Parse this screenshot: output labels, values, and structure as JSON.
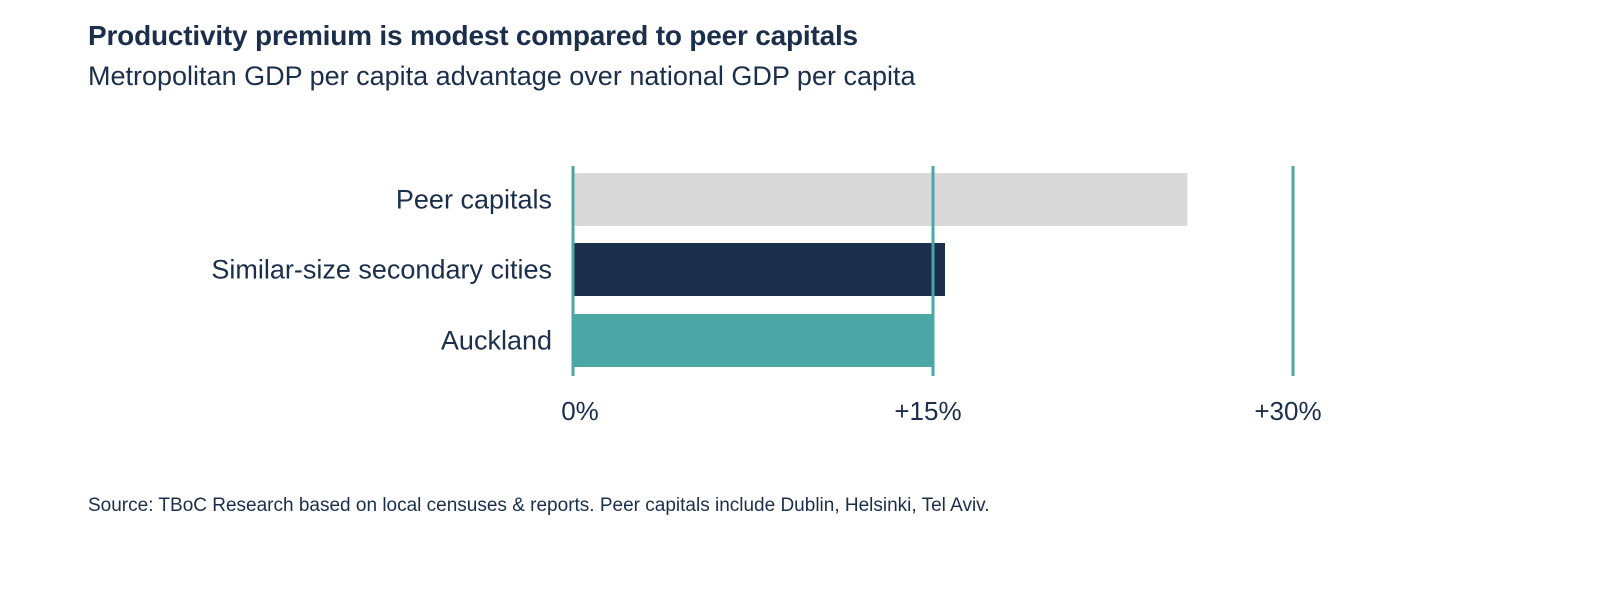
{
  "chart_data": {
    "type": "bar",
    "orientation": "horizontal",
    "title": "Productivity premium is modest compared to peer capitals",
    "subtitle": "Metropolitan GDP per capita advantage over national GDP per capita",
    "categories": [
      "Peer capitals",
      "Similar-size secondary cities",
      "Auckland"
    ],
    "values": [
      25.6,
      15.5,
      15.0
    ],
    "colors": [
      "#d9d9d9",
      "#1b2e4b",
      "#4aa7a6"
    ],
    "gridline_color": "#4aa7a6",
    "xlim": [
      0,
      30
    ],
    "ticks": [
      0,
      15,
      30
    ],
    "tick_labels": [
      "0%",
      "+15%",
      "+30%"
    ],
    "xlabel": "",
    "ylabel": "",
    "grid": true,
    "legend": "none"
  },
  "source": "Source: TBoC Research based on local censuses & reports. Peer capitals include Dublin, Helsinki, Tel Aviv."
}
